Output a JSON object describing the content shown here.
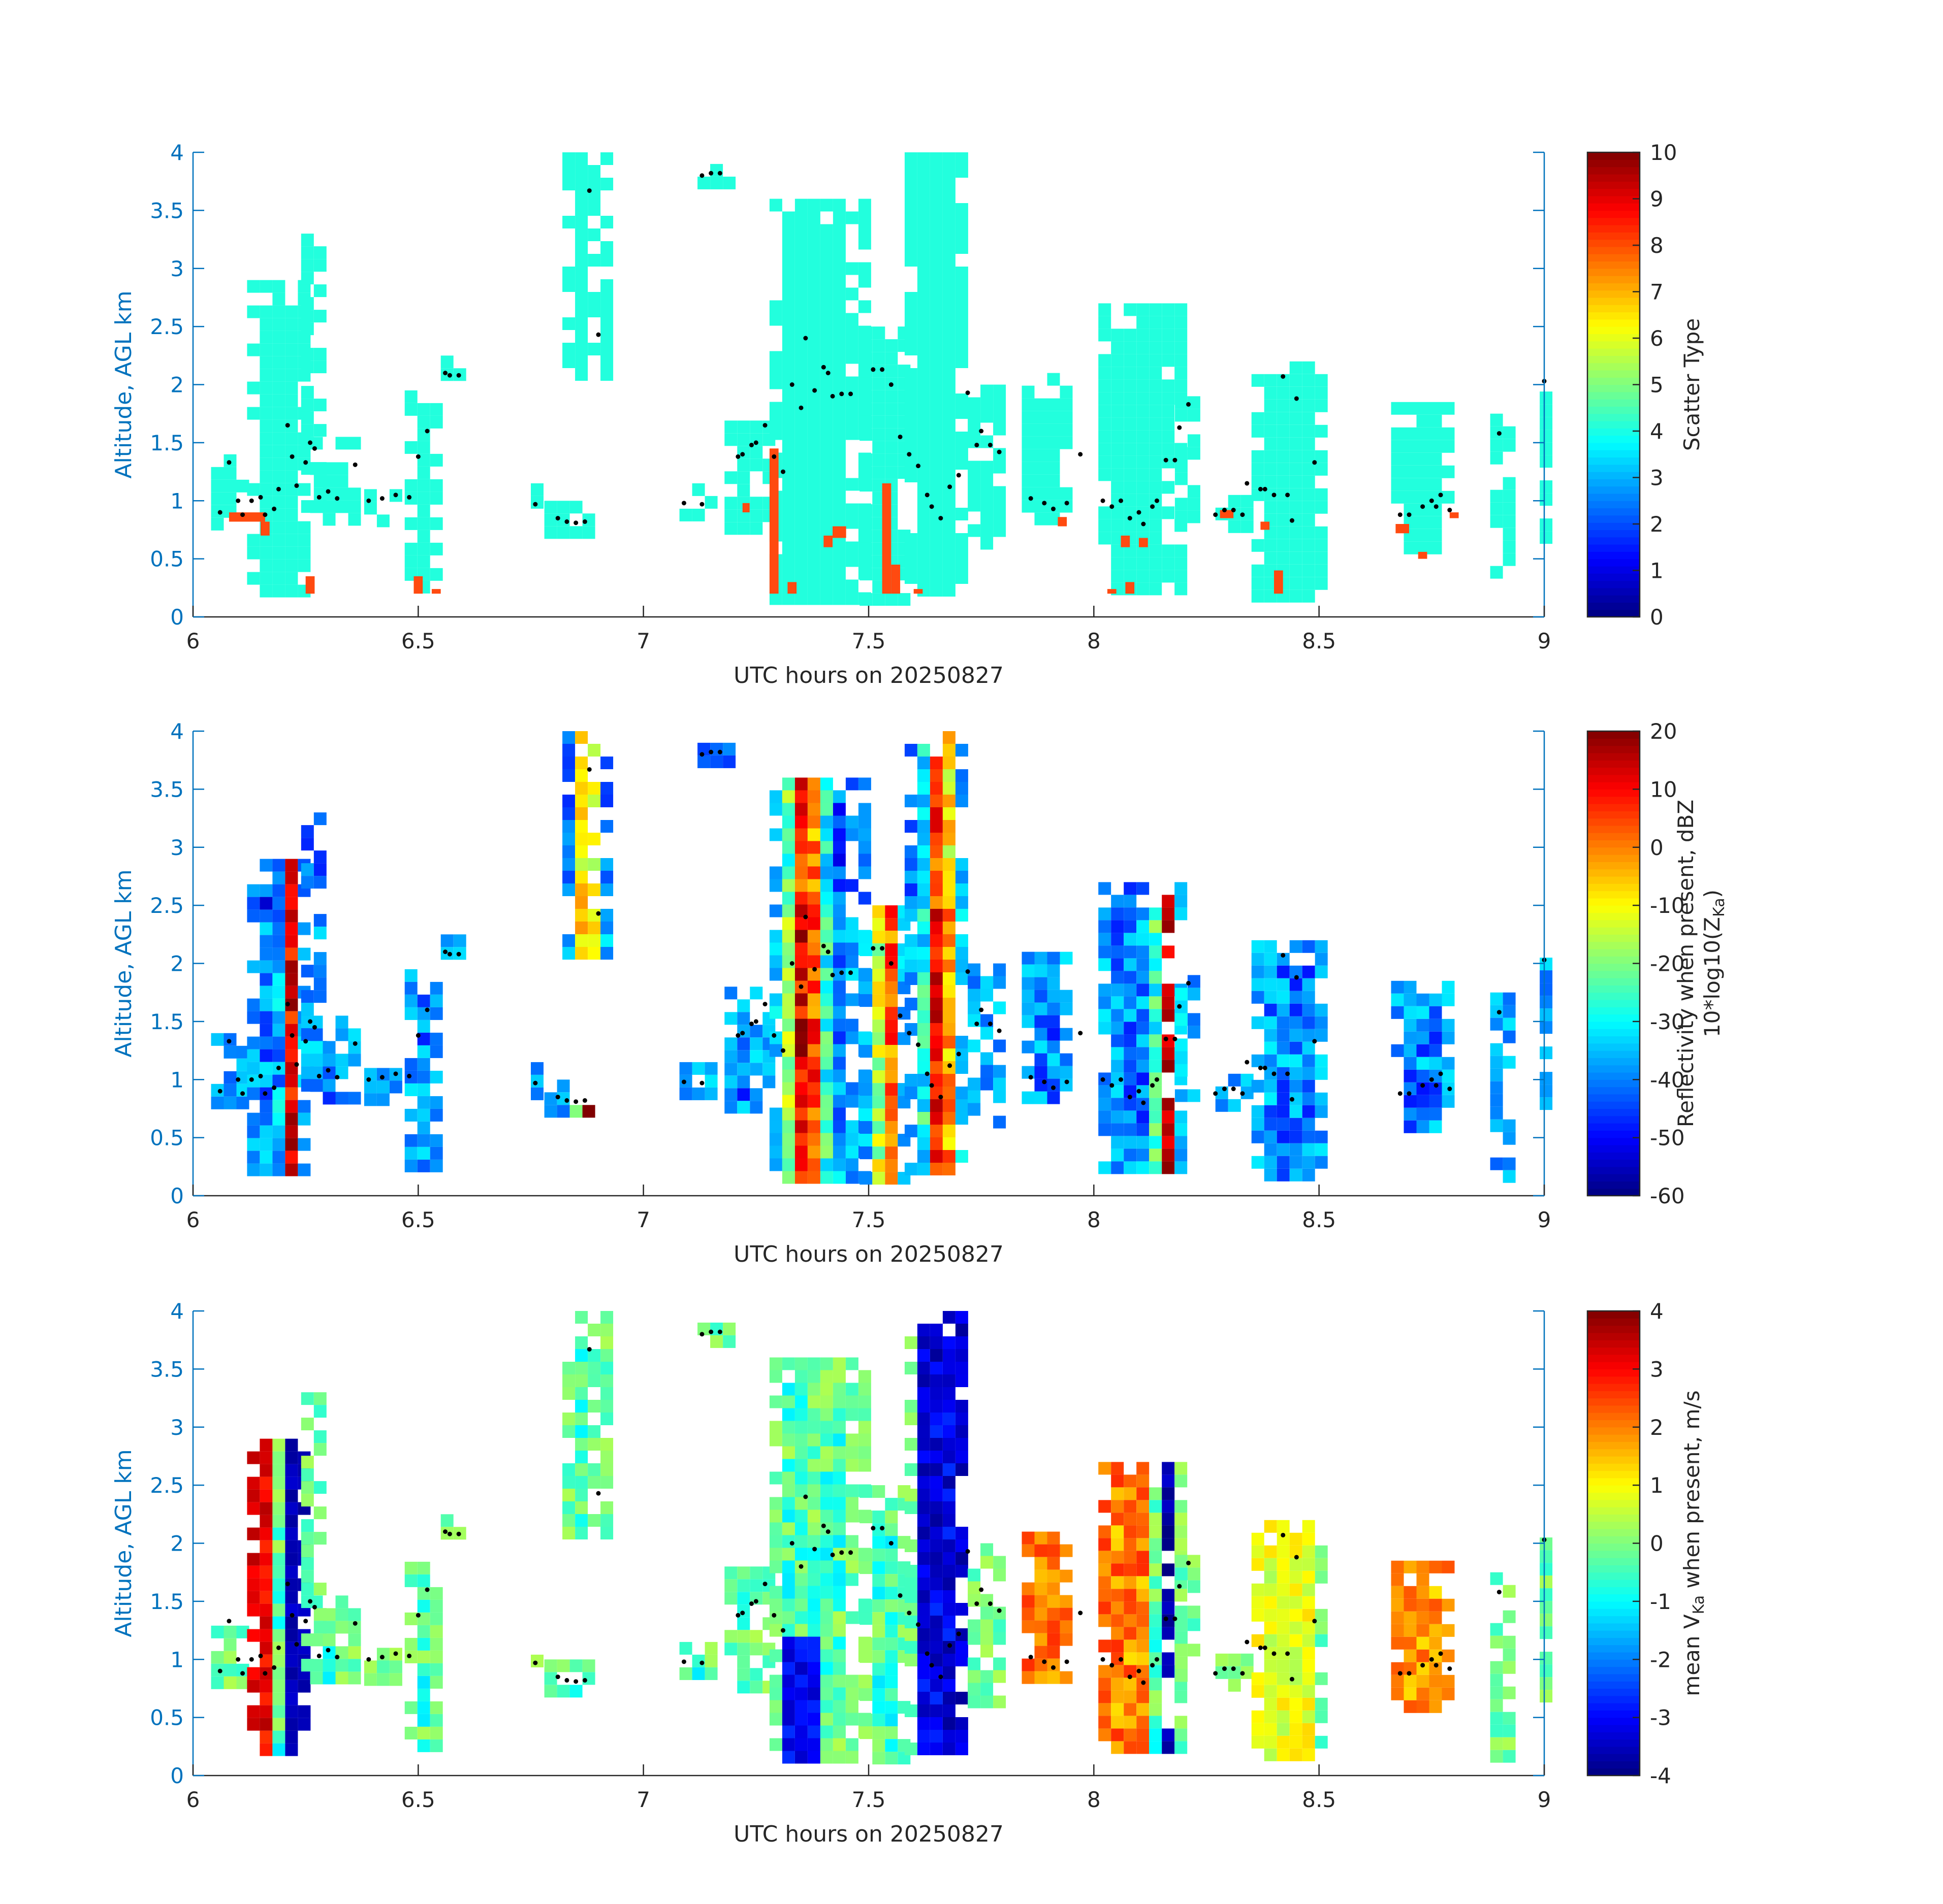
{
  "figure": {
    "colors": {
      "axis_blue": "#0072bd",
      "axis_black": "#262626",
      "hydrometeor_cyan": "#22ffdd",
      "scatter_orange": "#ff4a10",
      "cloud_base_dot": "#000000"
    }
  },
  "chart_data": [
    {
      "type": "heatmap",
      "panel": "scatter-type",
      "xlabel": "UTC hours on 20250827",
      "ylabel": "Altitude, AGL km",
      "xlim": [
        6,
        9
      ],
      "ylim": [
        0,
        4
      ],
      "xticks": [
        "6",
        "6.5",
        "7",
        "7.5",
        "8",
        "8.5",
        "9"
      ],
      "yticks": [
        "0",
        "0.5",
        "1",
        "1.5",
        "2",
        "2.5",
        "3",
        "3.5",
        "4"
      ],
      "colorbar": {
        "label": "Scatter Type",
        "label2": "",
        "range": [
          0,
          10
        ],
        "ticks": [
          "0",
          "1",
          "2",
          "3",
          "4",
          "5",
          "6",
          "7",
          "8",
          "9",
          "10"
        ],
        "colormap": "jet"
      },
      "grid": false,
      "dominant_value": 3.8,
      "secondary_value": 8.5
    },
    {
      "type": "heatmap",
      "panel": "reflectivity",
      "xlabel": "UTC hours on 20250827",
      "ylabel": "Altitude, AGL km",
      "xlim": [
        6,
        9
      ],
      "ylim": [
        0,
        4
      ],
      "xticks": [
        "6",
        "6.5",
        "7",
        "7.5",
        "8",
        "8.5",
        "9"
      ],
      "yticks": [
        "0",
        "0.5",
        "1",
        "1.5",
        "2",
        "2.5",
        "3",
        "3.5",
        "4"
      ],
      "colorbar": {
        "label": "Reflectivity when present, dBZ",
        "label2": "10*log10(Z",
        "label2_sub": "Ka",
        "label2_end": ")",
        "range": [
          -60,
          20
        ],
        "ticks": [
          "-60",
          "-50",
          "-40",
          "-30",
          "-20",
          "-10",
          "0",
          "10",
          "20"
        ],
        "colormap": "jet"
      },
      "grid": false
    },
    {
      "type": "heatmap",
      "panel": "mean-velocity",
      "xlabel": "UTC hours on 20250827",
      "ylabel": "Altitude, AGL km",
      "xlim": [
        6,
        9
      ],
      "ylim": [
        0,
        4
      ],
      "xticks": [
        "6",
        "6.5",
        "7",
        "7.5",
        "8",
        "8.5",
        "9"
      ],
      "yticks": [
        "0",
        "0.5",
        "1",
        "1.5",
        "2",
        "2.5",
        "3",
        "3.5",
        "4"
      ],
      "colorbar": {
        "label_pre": "mean V",
        "label_sub": "Ka",
        "label_post": " when present, m/s",
        "range": [
          -4,
          4
        ],
        "ticks": [
          "-4",
          "-3",
          "-2",
          "-1",
          "0",
          "1",
          "2",
          "3",
          "4"
        ],
        "colormap": "jet"
      },
      "grid": false
    }
  ],
  "echo_segments": [
    {
      "x0": 6.04,
      "x1": 6.1,
      "bottom": 0.85,
      "top": 1.4
    },
    {
      "x0": 6.12,
      "x1": 6.26,
      "bottom": 0.2,
      "top": 2.9
    },
    {
      "x0": 6.24,
      "x1": 6.29,
      "bottom": 0.9,
      "top": 3.3
    },
    {
      "x0": 6.26,
      "x1": 6.35,
      "bottom": 0.85,
      "top": 1.55
    },
    {
      "x0": 6.38,
      "x1": 6.46,
      "bottom": 0.85,
      "top": 1.1
    },
    {
      "x0": 6.47,
      "x1": 6.55,
      "bottom": 0.2,
      "top": 1.95
    },
    {
      "x0": 6.55,
      "x1": 6.6,
      "bottom": 2.05,
      "top": 2.25
    },
    {
      "x0": 6.75,
      "x1": 6.77,
      "bottom": 0.9,
      "top": 1.15
    },
    {
      "x0": 6.78,
      "x1": 6.88,
      "bottom": 0.72,
      "top": 1.0
    },
    {
      "x0": 6.82,
      "x1": 6.91,
      "bottom": 2.1,
      "top": 4.0
    },
    {
      "x0": 7.08,
      "x1": 7.15,
      "bottom": 0.9,
      "top": 1.15
    },
    {
      "x0": 7.12,
      "x1": 7.18,
      "bottom": 3.75,
      "top": 3.9
    },
    {
      "x0": 7.18,
      "x1": 7.27,
      "bottom": 0.8,
      "top": 1.8
    },
    {
      "x0": 7.28,
      "x1": 7.48,
      "bottom": 0.2,
      "top": 3.6
    },
    {
      "x0": 7.48,
      "x1": 7.58,
      "bottom": 0.2,
      "top": 2.5
    },
    {
      "x0": 7.58,
      "x1": 7.72,
      "bottom": 0.2,
      "top": 4.0
    },
    {
      "x0": 7.72,
      "x1": 7.78,
      "bottom": 0.6,
      "top": 2.0
    },
    {
      "x0": 7.84,
      "x1": 7.95,
      "bottom": 0.85,
      "top": 2.1
    },
    {
      "x0": 8.01,
      "x1": 8.18,
      "bottom": 0.2,
      "top": 2.7
    },
    {
      "x0": 8.18,
      "x1": 8.21,
      "bottom": 0.9,
      "top": 1.9
    },
    {
      "x0": 8.27,
      "x1": 8.34,
      "bottom": 0.8,
      "top": 1.05
    },
    {
      "x0": 8.35,
      "x1": 8.5,
      "bottom": 0.2,
      "top": 2.2
    },
    {
      "x0": 8.66,
      "x1": 8.8,
      "bottom": 0.55,
      "top": 1.85
    },
    {
      "x0": 8.88,
      "x1": 8.91,
      "bottom": 0.2,
      "top": 1.75
    },
    {
      "x0": 8.99,
      "x1": 9.0,
      "bottom": 0.55,
      "top": 2.05
    }
  ],
  "scatter_orange_spots": [
    {
      "x0": 6.08,
      "x1": 6.16,
      "bottom": 0.82,
      "top": 0.9
    },
    {
      "x0": 6.15,
      "x1": 6.17,
      "bottom": 0.7,
      "top": 0.82
    },
    {
      "x0": 6.25,
      "x1": 6.27,
      "bottom": 0.2,
      "top": 0.35
    },
    {
      "x0": 6.49,
      "x1": 6.51,
      "bottom": 0.2,
      "top": 0.35
    },
    {
      "x0": 6.53,
      "x1": 6.55,
      "bottom": 0.2,
      "top": 0.24
    },
    {
      "x0": 7.22,
      "x1": 7.23,
      "bottom": 0.9,
      "top": 0.98
    },
    {
      "x0": 7.28,
      "x1": 7.3,
      "bottom": 0.2,
      "top": 1.45
    },
    {
      "x0": 7.32,
      "x1": 7.34,
      "bottom": 0.2,
      "top": 0.3
    },
    {
      "x0": 7.4,
      "x1": 7.42,
      "bottom": 0.6,
      "top": 0.7
    },
    {
      "x0": 7.42,
      "x1": 7.45,
      "bottom": 0.68,
      "top": 0.78
    },
    {
      "x0": 7.53,
      "x1": 7.55,
      "bottom": 0.2,
      "top": 1.15
    },
    {
      "x0": 7.55,
      "x1": 7.57,
      "bottom": 0.2,
      "top": 0.45
    },
    {
      "x0": 7.6,
      "x1": 7.62,
      "bottom": 0.2,
      "top": 0.24
    },
    {
      "x0": 7.92,
      "x1": 7.94,
      "bottom": 0.78,
      "top": 0.86
    },
    {
      "x0": 8.03,
      "x1": 8.05,
      "bottom": 0.2,
      "top": 0.24
    },
    {
      "x0": 8.06,
      "x1": 8.08,
      "bottom": 0.6,
      "top": 0.7
    },
    {
      "x0": 8.07,
      "x1": 8.09,
      "bottom": 0.2,
      "top": 0.3
    },
    {
      "x0": 8.1,
      "x1": 8.12,
      "bottom": 0.6,
      "top": 0.68
    },
    {
      "x0": 8.28,
      "x1": 8.31,
      "bottom": 0.85,
      "top": 0.92
    },
    {
      "x0": 8.37,
      "x1": 8.39,
      "bottom": 0.75,
      "top": 0.82
    },
    {
      "x0": 8.4,
      "x1": 8.42,
      "bottom": 0.2,
      "top": 0.4
    },
    {
      "x0": 8.67,
      "x1": 8.7,
      "bottom": 0.72,
      "top": 0.8
    },
    {
      "x0": 8.72,
      "x1": 8.74,
      "bottom": 0.5,
      "top": 0.56
    },
    {
      "x0": 8.79,
      "x1": 8.81,
      "bottom": 0.85,
      "top": 0.9
    }
  ],
  "cloud_base_dots": [
    [
      6.06,
      0.9
    ],
    [
      6.08,
      1.33
    ],
    [
      6.1,
      1.0
    ],
    [
      6.11,
      0.88
    ],
    [
      6.13,
      1.0
    ],
    [
      6.15,
      1.03
    ],
    [
      6.16,
      0.88
    ],
    [
      6.18,
      0.93
    ],
    [
      6.19,
      1.1
    ],
    [
      6.21,
      1.65
    ],
    [
      6.22,
      1.38
    ],
    [
      6.23,
      1.13
    ],
    [
      6.25,
      1.33
    ],
    [
      6.26,
      1.5
    ],
    [
      6.27,
      1.45
    ],
    [
      6.28,
      1.03
    ],
    [
      6.3,
      1.08
    ],
    [
      6.32,
      1.02
    ],
    [
      6.36,
      1.31
    ],
    [
      6.39,
      1.0
    ],
    [
      6.42,
      1.02
    ],
    [
      6.45,
      1.05
    ],
    [
      6.48,
      1.03
    ],
    [
      6.5,
      1.38
    ],
    [
      6.52,
      1.6
    ],
    [
      6.56,
      2.1
    ],
    [
      6.57,
      2.08
    ],
    [
      6.59,
      2.08
    ],
    [
      6.76,
      0.97
    ],
    [
      6.81,
      0.85
    ],
    [
      6.83,
      0.82
    ],
    [
      6.85,
      0.81
    ],
    [
      6.87,
      0.82
    ],
    [
      6.88,
      3.67
    ],
    [
      6.9,
      2.43
    ],
    [
      7.09,
      0.98
    ],
    [
      7.13,
      0.97
    ],
    [
      7.13,
      3.8
    ],
    [
      7.15,
      3.82
    ],
    [
      7.17,
      3.82
    ],
    [
      7.21,
      1.38
    ],
    [
      7.22,
      1.4
    ],
    [
      7.24,
      1.48
    ],
    [
      7.25,
      1.5
    ],
    [
      7.27,
      1.65
    ],
    [
      7.29,
      1.38
    ],
    [
      7.31,
      1.25
    ],
    [
      7.33,
      2.0
    ],
    [
      7.35,
      1.8
    ],
    [
      7.36,
      2.4
    ],
    [
      7.38,
      1.95
    ],
    [
      7.4,
      2.15
    ],
    [
      7.41,
      2.1
    ],
    [
      7.42,
      1.9
    ],
    [
      7.44,
      1.92
    ],
    [
      7.46,
      1.92
    ],
    [
      7.51,
      2.13
    ],
    [
      7.53,
      2.13
    ],
    [
      7.55,
      2.0
    ],
    [
      7.57,
      1.55
    ],
    [
      7.59,
      1.4
    ],
    [
      7.61,
      1.3
    ],
    [
      7.63,
      1.05
    ],
    [
      7.64,
      0.95
    ],
    [
      7.66,
      0.85
    ],
    [
      7.68,
      1.12
    ],
    [
      7.7,
      1.22
    ],
    [
      7.72,
      1.93
    ],
    [
      7.74,
      1.48
    ],
    [
      7.75,
      1.6
    ],
    [
      7.77,
      1.48
    ],
    [
      7.79,
      1.42
    ],
    [
      7.86,
      1.02
    ],
    [
      7.89,
      0.98
    ],
    [
      7.91,
      0.93
    ],
    [
      7.94,
      0.98
    ],
    [
      7.97,
      1.4
    ],
    [
      8.02,
      1.0
    ],
    [
      8.04,
      0.95
    ],
    [
      8.06,
      1.0
    ],
    [
      8.08,
      0.85
    ],
    [
      8.1,
      0.9
    ],
    [
      8.11,
      0.8
    ],
    [
      8.13,
      0.95
    ],
    [
      8.14,
      1.0
    ],
    [
      8.16,
      1.35
    ],
    [
      8.18,
      1.35
    ],
    [
      8.19,
      1.63
    ],
    [
      8.21,
      1.83
    ],
    [
      8.27,
      0.88
    ],
    [
      8.29,
      0.92
    ],
    [
      8.31,
      0.92
    ],
    [
      8.33,
      0.88
    ],
    [
      8.34,
      1.15
    ],
    [
      8.37,
      1.1
    ],
    [
      8.38,
      1.1
    ],
    [
      8.4,
      1.05
    ],
    [
      8.42,
      2.07
    ],
    [
      8.43,
      1.05
    ],
    [
      8.44,
      0.83
    ],
    [
      8.45,
      1.88
    ],
    [
      8.49,
      1.33
    ],
    [
      8.68,
      0.88
    ],
    [
      8.7,
      0.88
    ],
    [
      8.73,
      0.95
    ],
    [
      8.75,
      1.0
    ],
    [
      8.76,
      0.95
    ],
    [
      8.77,
      1.05
    ],
    [
      8.79,
      0.92
    ],
    [
      8.9,
      1.58
    ],
    [
      9.0,
      2.03
    ]
  ]
}
